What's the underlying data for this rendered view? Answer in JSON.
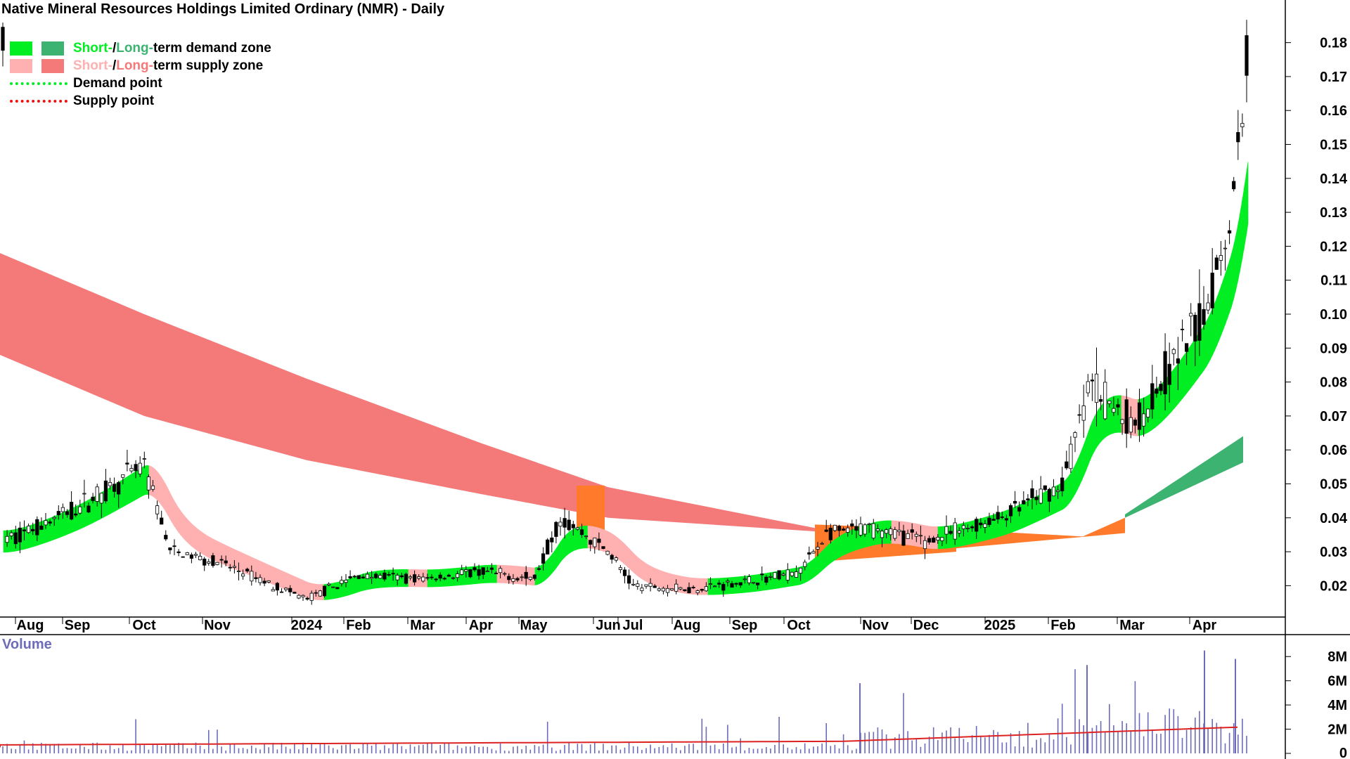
{
  "title": "Native Mineral Resources Holdings Limited Ordinary (NMR) - Daily",
  "legend": [
    {
      "prefix": "Short-",
      "sep": " / ",
      "mid": "Long-",
      "suffix": "term demand zone",
      "c1": "#00ee22",
      "c2": "#3cb371"
    },
    {
      "prefix": "Short-",
      "sep": " / ",
      "mid": "Long-",
      "suffix": "term supply zone",
      "c1": "#ffb0b0",
      "c2": "#f47a7a"
    },
    {
      "label": "Demand point",
      "color": "#00ee22"
    },
    {
      "label": "Supply point",
      "color": "#ee1111"
    }
  ],
  "volume_label": "Volume",
  "colors": {
    "short_demand": "#00ee22",
    "long_demand": "#3cb371",
    "short_supply": "#ffb0b0",
    "long_supply": "#f47a7a",
    "overlap": "#ff7a2a",
    "volume_bar": "#6c6cb8",
    "volume_avg": "#dd2222"
  },
  "chart_data": [
    {
      "type": "candlestick",
      "title": "Native Mineral Resources Holdings Limited Ordinary (NMR) - Daily",
      "x_tick_labels": [
        "Aug",
        "Sep",
        "Oct",
        "Nov",
        "2024",
        "Feb",
        "Mar",
        "Apr",
        "May",
        "Jun",
        "Jul",
        "Aug",
        "Sep",
        "Oct",
        "Nov",
        "Dec",
        "2025",
        "Feb",
        "Mar",
        "Apr"
      ],
      "y_tick_labels": [
        "0.02",
        "0.03",
        "0.04",
        "0.05",
        "0.06",
        "0.07",
        "0.08",
        "0.09",
        "0.10",
        "0.11",
        "0.12",
        "0.13",
        "0.14",
        "0.15",
        "0.16",
        "0.17",
        "0.18"
      ],
      "ylim": [
        0.012,
        0.188
      ],
      "price_path": [
        [
          "Aug",
          0.033
        ],
        [
          "Aug",
          0.04
        ],
        [
          "Sep",
          0.043
        ],
        [
          "Oct",
          0.055
        ],
        [
          "Oct",
          0.03
        ],
        [
          "Nov",
          0.027
        ],
        [
          "2024",
          0.016
        ],
        [
          "Feb",
          0.023
        ],
        [
          "Mar",
          0.022
        ],
        [
          "Apr",
          0.024
        ],
        [
          "May",
          0.022
        ],
        [
          "May",
          0.04
        ],
        [
          "Jun",
          0.03
        ],
        [
          "Jul",
          0.02
        ],
        [
          "Aug",
          0.019
        ],
        [
          "Sep",
          0.021
        ],
        [
          "Oct",
          0.024
        ],
        [
          "Oct",
          0.035
        ],
        [
          "Nov",
          0.037
        ],
        [
          "Dec",
          0.033
        ],
        [
          "2025",
          0.04
        ],
        [
          "Feb",
          0.05
        ],
        [
          "Feb",
          0.08
        ],
        [
          "Mar",
          0.067
        ],
        [
          "Apr",
          0.1
        ],
        [
          "Apr",
          0.13
        ],
        [
          "Apr",
          0.18
        ]
      ],
      "long_term_supply_zone": [
        [
          "Aug",
          0.088,
          0.118
        ],
        [
          "Oct",
          0.07,
          0.1
        ],
        [
          "2024",
          0.057,
          0.081
        ],
        [
          "Apr",
          0.047,
          0.062
        ],
        [
          "Jun",
          0.04,
          0.049
        ],
        [
          "Oct",
          0.036,
          0.037
        ]
      ],
      "volume": {
        "y_tick_labels": [
          "0",
          "2M",
          "4M",
          "6M",
          "8M"
        ],
        "ylim": [
          0,
          9000000
        ],
        "peaks": [
          [
            "Nov",
            5800000
          ],
          [
            "Feb",
            7300000
          ],
          [
            "Apr",
            8500000
          ],
          [
            "Apr",
            7800000
          ]
        ],
        "average_level": 2200000
      }
    }
  ]
}
